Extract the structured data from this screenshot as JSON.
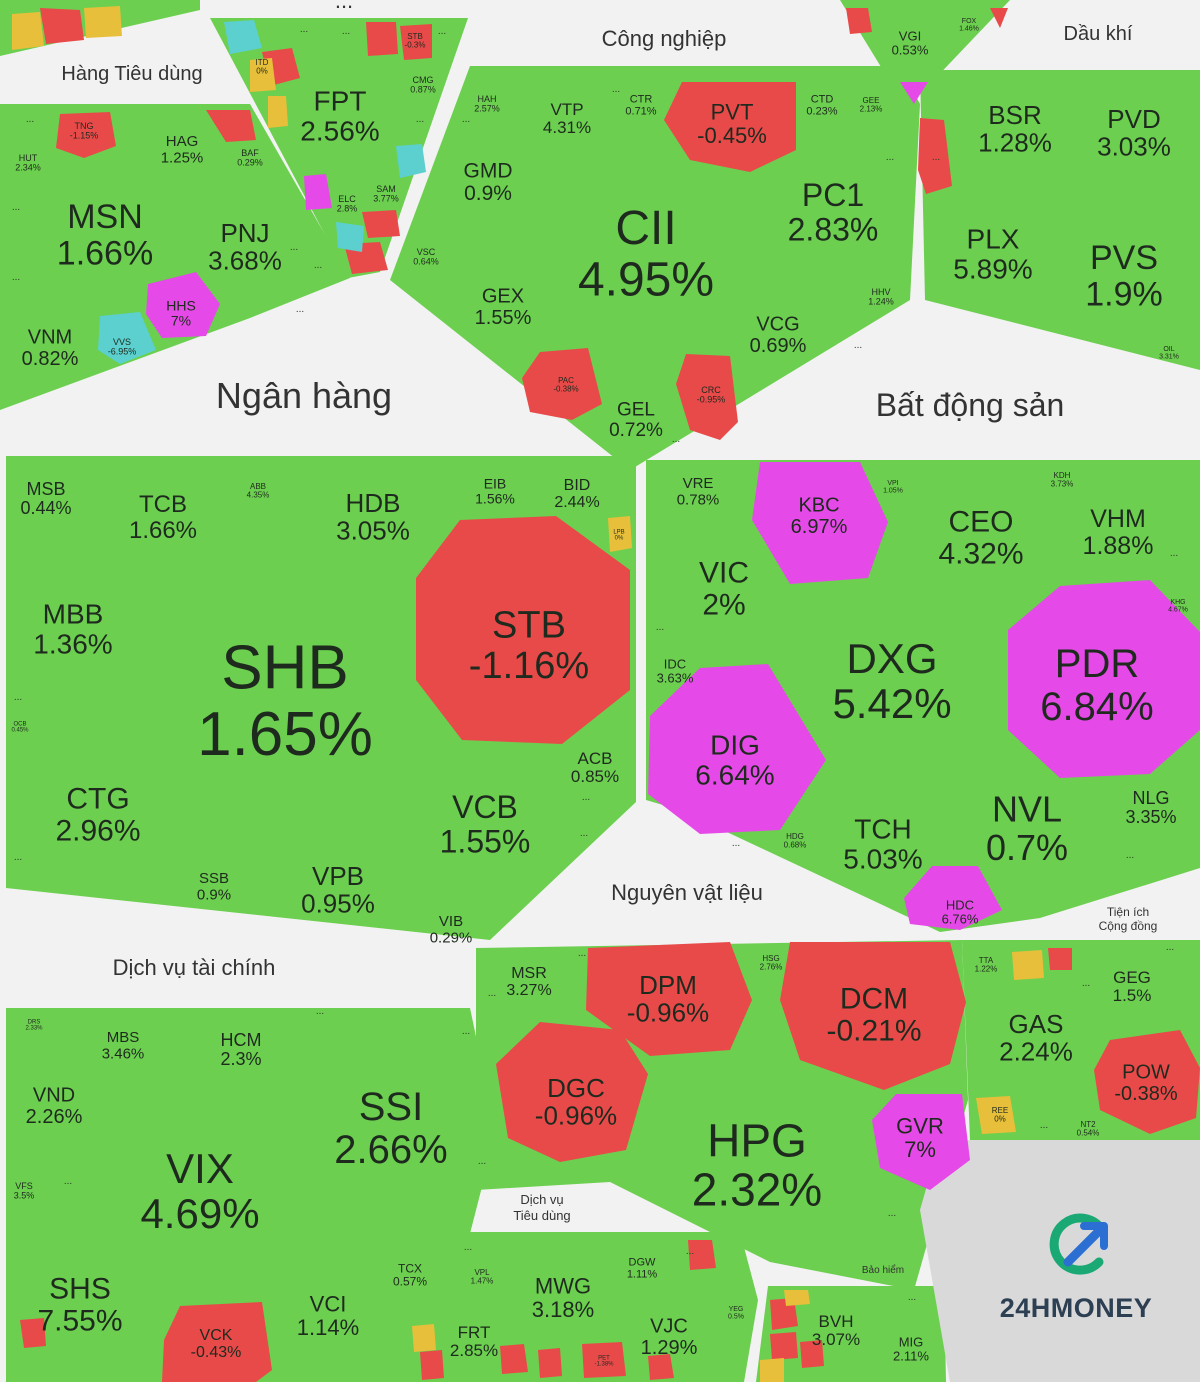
{
  "colors": {
    "background": "#f2f2f2",
    "up": "#6ccf4f",
    "down": "#e84a4a",
    "ceiling": "#e54ae8",
    "floor": "#5bd0cf",
    "flat": "#e8bf3a",
    "cell_border": "#b7ddb0",
    "text": "#1e2a1e"
  },
  "sectors": [
    {
      "name": "Hàng Tiêu dùng"
    },
    {
      "name": "..."
    },
    {
      "name": "Công nghiệp"
    },
    {
      "name": "Dầu khí"
    },
    {
      "name": "Ngân hàng"
    },
    {
      "name": "Bất động sản"
    },
    {
      "name": "Nguyên vật liệu"
    },
    {
      "name": "Tiện ích Cộng đồng"
    },
    {
      "name": "Dịch vụ tài chính"
    },
    {
      "name": "Dịch vụ Tiêu dùng"
    },
    {
      "name": "Bảo hiểm"
    }
  ],
  "chart_data": {
    "type": "heatmap",
    "description_note": "",
    "cells": [
      {
        "ticker": "MSN",
        "change": "1.66%",
        "status": "up"
      },
      {
        "ticker": "PNJ",
        "change": "3.68%",
        "status": "up"
      },
      {
        "ticker": "HAG",
        "change": "1.25%",
        "status": "up"
      },
      {
        "ticker": "TNG",
        "change": "-1.15%",
        "status": "down"
      },
      {
        "ticker": "HUT",
        "change": "2.34%",
        "status": "up"
      },
      {
        "ticker": "BAF",
        "change": "0.29%",
        "status": "up"
      },
      {
        "ticker": "HHS",
        "change": "7%",
        "status": "ceiling"
      },
      {
        "ticker": "VNM",
        "change": "0.82%",
        "status": "up"
      },
      {
        "ticker": "VVS",
        "change": "-6.95%",
        "status": "floor"
      },
      {
        "ticker": "FPT",
        "change": "2.56%",
        "status": "up"
      },
      {
        "ticker": "CMG",
        "change": "0.87%",
        "status": "up"
      },
      {
        "ticker": "ITD",
        "change": "0%",
        "status": "flat"
      },
      {
        "ticker": "STB",
        "change": "-0.3%",
        "status": "down"
      },
      {
        "ticker": "ELC",
        "change": "2.8%",
        "status": "up"
      },
      {
        "ticker": "SAM",
        "change": "3.77%",
        "status": "up"
      },
      {
        "ticker": "CII",
        "change": "4.95%",
        "status": "up"
      },
      {
        "ticker": "PC1",
        "change": "2.83%",
        "status": "up"
      },
      {
        "ticker": "PVT",
        "change": "-0.45%",
        "status": "down"
      },
      {
        "ticker": "VTP",
        "change": "4.31%",
        "status": "up"
      },
      {
        "ticker": "HAH",
        "change": "2.57%",
        "status": "up"
      },
      {
        "ticker": "CTR",
        "change": "0.71%",
        "status": "up"
      },
      {
        "ticker": "CTD",
        "change": "0.23%",
        "status": "up"
      },
      {
        "ticker": "GEE",
        "change": "2.13%",
        "status": "up"
      },
      {
        "ticker": "GMD",
        "change": "0.9%",
        "status": "up"
      },
      {
        "ticker": "GEX",
        "change": "1.55%",
        "status": "up"
      },
      {
        "ticker": "VSC",
        "change": "0.64%",
        "status": "up"
      },
      {
        "ticker": "VCG",
        "change": "0.69%",
        "status": "up"
      },
      {
        "ticker": "HHV",
        "change": "1.24%",
        "status": "up"
      },
      {
        "ticker": "PAC",
        "change": "-0.38%",
        "status": "down"
      },
      {
        "ticker": "GEL",
        "change": "0.72%",
        "status": "up"
      },
      {
        "ticker": "CRC",
        "change": "-0.95%",
        "status": "down"
      },
      {
        "ticker": "VGI",
        "change": "0.53%",
        "status": "up"
      },
      {
        "ticker": "FOX",
        "change": "1.46%",
        "status": "up"
      },
      {
        "ticker": "BSR",
        "change": "1.28%",
        "status": "up"
      },
      {
        "ticker": "PVD",
        "change": "3.03%",
        "status": "up"
      },
      {
        "ticker": "PLX",
        "change": "5.89%",
        "status": "up"
      },
      {
        "ticker": "PVS",
        "change": "1.9%",
        "status": "up"
      },
      {
        "ticker": "OIL",
        "change": "3.31%",
        "status": "up"
      },
      {
        "ticker": "SHB",
        "change": "1.65%",
        "status": "up"
      },
      {
        "ticker": "STB",
        "change": "-1.16%",
        "status": "down"
      },
      {
        "ticker": "HDB",
        "change": "3.05%",
        "status": "up"
      },
      {
        "ticker": "TCB",
        "change": "1.66%",
        "status": "up"
      },
      {
        "ticker": "MSB",
        "change": "0.44%",
        "status": "up"
      },
      {
        "ticker": "ABB",
        "change": "4.35%",
        "status": "up"
      },
      {
        "ticker": "EIB",
        "change": "1.56%",
        "status": "up"
      },
      {
        "ticker": "BID",
        "change": "2.44%",
        "status": "up"
      },
      {
        "ticker": "LPB",
        "change": "0%",
        "status": "flat"
      },
      {
        "ticker": "MBB",
        "change": "1.36%",
        "status": "up"
      },
      {
        "ticker": "OCB",
        "change": "0.45%",
        "status": "up"
      },
      {
        "ticker": "CTG",
        "change": "2.96%",
        "status": "up"
      },
      {
        "ticker": "SSB",
        "change": "0.9%",
        "status": "up"
      },
      {
        "ticker": "VPB",
        "change": "0.95%",
        "status": "up"
      },
      {
        "ticker": "VCB",
        "change": "1.55%",
        "status": "up"
      },
      {
        "ticker": "ACB",
        "change": "0.85%",
        "status": "up"
      },
      {
        "ticker": "VIB",
        "change": "0.29%",
        "status": "up"
      },
      {
        "ticker": "DXG",
        "change": "5.42%",
        "status": "up"
      },
      {
        "ticker": "PDR",
        "change": "6.84%",
        "status": "ceiling"
      },
      {
        "ticker": "KBC",
        "change": "6.97%",
        "status": "ceiling"
      },
      {
        "ticker": "DIG",
        "change": "6.64%",
        "status": "ceiling"
      },
      {
        "ticker": "VIC",
        "change": "2%",
        "status": "up"
      },
      {
        "ticker": "VRE",
        "change": "0.78%",
        "status": "up"
      },
      {
        "ticker": "VPI",
        "change": "1.05%",
        "status": "up"
      },
      {
        "ticker": "CEO",
        "change": "4.32%",
        "status": "up"
      },
      {
        "ticker": "KDH",
        "change": "3.73%",
        "status": "up"
      },
      {
        "ticker": "VHM",
        "change": "1.88%",
        "status": "up"
      },
      {
        "ticker": "KHG",
        "change": "4.67%",
        "status": "up"
      },
      {
        "ticker": "IDC",
        "change": "3.63%",
        "status": "up"
      },
      {
        "ticker": "NVL",
        "change": "0.7%",
        "status": "up"
      },
      {
        "ticker": "NLG",
        "change": "3.35%",
        "status": "up"
      },
      {
        "ticker": "TCH",
        "change": "5.03%",
        "status": "up"
      },
      {
        "ticker": "HDG",
        "change": "0.68%",
        "status": "up"
      },
      {
        "ticker": "HDC",
        "change": "6.76%",
        "status": "ceiling"
      },
      {
        "ticker": "HPG",
        "change": "2.32%",
        "status": "up"
      },
      {
        "ticker": "DPM",
        "change": "-0.96%",
        "status": "down"
      },
      {
        "ticker": "DCM",
        "change": "-0.21%",
        "status": "down"
      },
      {
        "ticker": "DGC",
        "change": "-0.96%",
        "status": "down"
      },
      {
        "ticker": "MSR",
        "change": "3.27%",
        "status": "up"
      },
      {
        "ticker": "HSG",
        "change": "2.76%",
        "status": "up"
      },
      {
        "ticker": "GVR",
        "change": "7%",
        "status": "ceiling"
      },
      {
        "ticker": "GAS",
        "change": "2.24%",
        "status": "up"
      },
      {
        "ticker": "POW",
        "change": "-0.38%",
        "status": "down"
      },
      {
        "ticker": "GEG",
        "change": "1.5%",
        "status": "up"
      },
      {
        "ticker": "TTA",
        "change": "1.22%",
        "status": "up"
      },
      {
        "ticker": "REE",
        "change": "0%",
        "status": "flat"
      },
      {
        "ticker": "NT2",
        "change": "0.54%",
        "status": "up"
      },
      {
        "ticker": "VIX",
        "change": "4.69%",
        "status": "up"
      },
      {
        "ticker": "SSI",
        "change": "2.66%",
        "status": "up"
      },
      {
        "ticker": "SHS",
        "change": "7.55%",
        "status": "up"
      },
      {
        "ticker": "VND",
        "change": "2.26%",
        "status": "up"
      },
      {
        "ticker": "HCM",
        "change": "2.3%",
        "status": "up"
      },
      {
        "ticker": "MBS",
        "change": "3.46%",
        "status": "up"
      },
      {
        "ticker": "DRS",
        "change": "2.33%",
        "status": "up"
      },
      {
        "ticker": "VFS",
        "change": "3.5%",
        "status": "up"
      },
      {
        "ticker": "VCK",
        "change": "-0.43%",
        "status": "down"
      },
      {
        "ticker": "VCI",
        "change": "1.14%",
        "status": "up"
      },
      {
        "ticker": "TCX",
        "change": "0.57%",
        "status": "up"
      },
      {
        "ticker": "MWG",
        "change": "3.18%",
        "status": "up"
      },
      {
        "ticker": "FRT",
        "change": "2.85%",
        "status": "up"
      },
      {
        "ticker": "VJC",
        "change": "1.29%",
        "status": "up"
      },
      {
        "ticker": "DGW",
        "change": "1.11%",
        "status": "up"
      },
      {
        "ticker": "VPL",
        "change": "1.47%",
        "status": "up"
      },
      {
        "ticker": "PET",
        "change": "-1.38%",
        "status": "down"
      },
      {
        "ticker": "YEG",
        "change": "0.5%",
        "status": "up"
      },
      {
        "ticker": "BVH",
        "change": "3.07%",
        "status": "up"
      },
      {
        "ticker": "MIG",
        "change": "2.11%",
        "status": "up"
      }
    ]
  },
  "logo": {
    "text": "24HMONEY",
    "color": "#2d3f53",
    "accent_green": "#1aa874",
    "accent_blue": "#2b6fd3"
  }
}
